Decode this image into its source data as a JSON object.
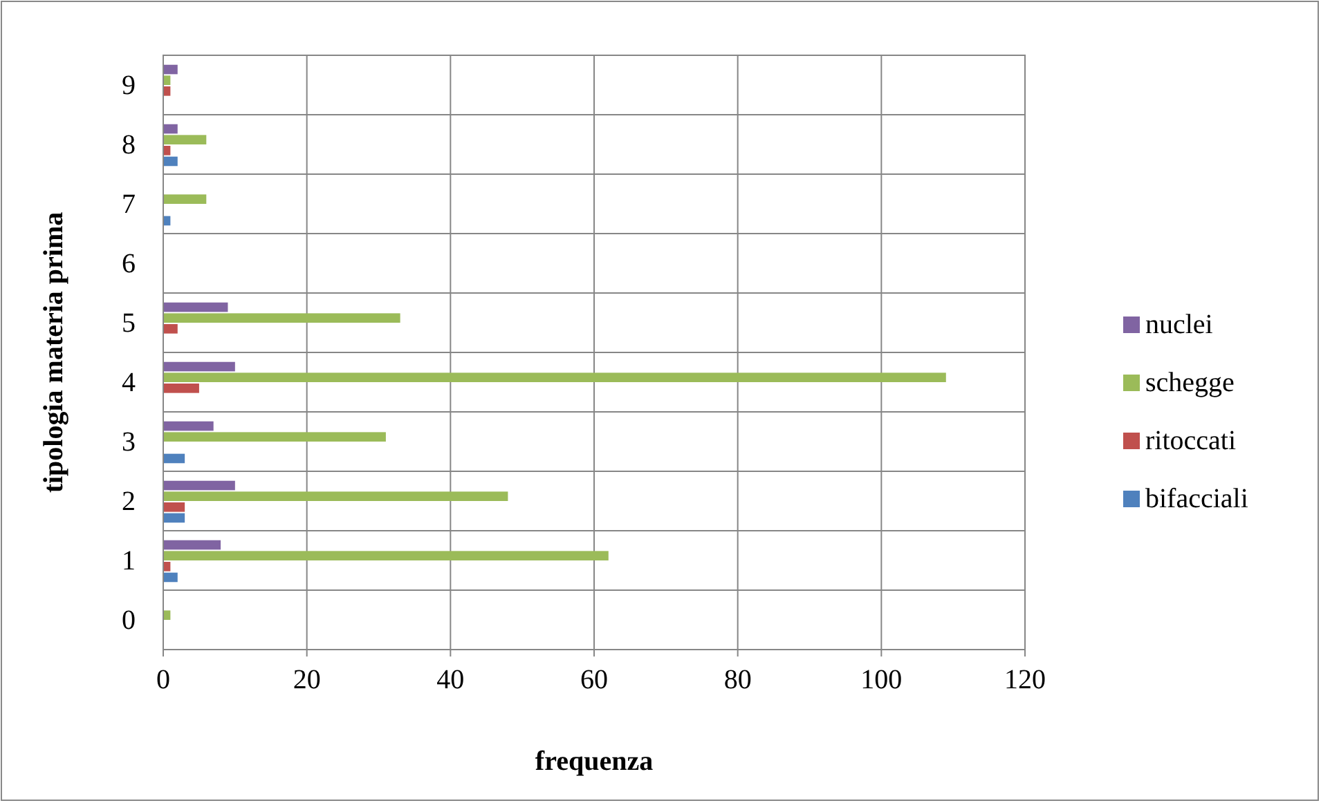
{
  "chart_data": {
    "type": "bar",
    "orientation": "horizontal",
    "xlabel": "frequenza",
    "ylabel": "tipologia materia prima",
    "categories": [
      "9",
      "8",
      "7",
      "6",
      "5",
      "4",
      "3",
      "2",
      "1",
      "0"
    ],
    "series": [
      {
        "name": "nuclei",
        "color": "#8064a2",
        "values": [
          2,
          2,
          0,
          0,
          9,
          10,
          7,
          10,
          8,
          0
        ]
      },
      {
        "name": "schegge",
        "color": "#9bbb59",
        "values": [
          1,
          6,
          6,
          0,
          33,
          109,
          31,
          48,
          62,
          1
        ]
      },
      {
        "name": "ritoccati",
        "color": "#c0504d",
        "values": [
          1,
          1,
          0,
          0,
          2,
          5,
          0,
          3,
          1,
          0
        ]
      },
      {
        "name": "bifacciali",
        "color": "#4f81bd",
        "values": [
          0,
          2,
          1,
          0,
          0,
          0,
          3,
          3,
          2,
          0
        ]
      }
    ],
    "xlim": [
      0,
      120
    ],
    "xticks": [
      0,
      20,
      40,
      60,
      80,
      100,
      120
    ],
    "grid": true,
    "legend": "right"
  }
}
